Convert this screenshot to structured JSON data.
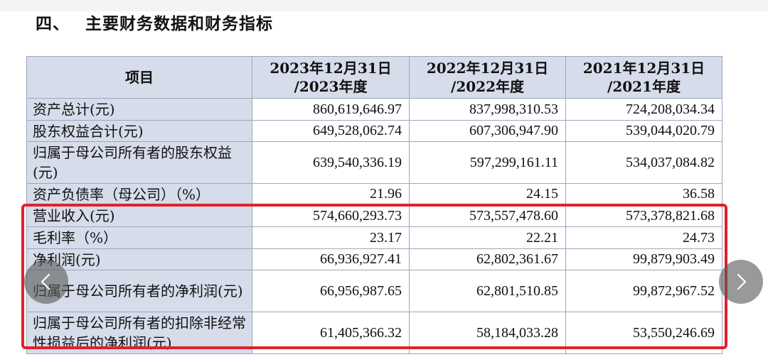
{
  "section": {
    "number": "四、",
    "title": "主要财务数据和财务指标"
  },
  "table": {
    "headers": [
      [
        "项目"
      ],
      [
        "2023年12月31日",
        "/2023年度"
      ],
      [
        "2022年12月31日",
        "/2022年度"
      ],
      [
        "2021年12月31日",
        "/2021年度"
      ]
    ],
    "rows": [
      {
        "label": "资产总计(元)",
        "values": [
          "860,619,646.97",
          "837,998,310.53",
          "724,208,034.34"
        ]
      },
      {
        "label": "股东权益合计(元)",
        "values": [
          "649,528,062.74",
          "607,306,947.90",
          "539,044,020.79"
        ]
      },
      {
        "label": "归属于母公司所有者的股东权益(元)",
        "values": [
          "639,540,336.19",
          "597,299,161.11",
          "534,037,084.82"
        ]
      },
      {
        "label": "资产负债率（母公司）（%）",
        "values": [
          "21.96",
          "24.15",
          "36.58"
        ]
      },
      {
        "label": "营业收入(元)",
        "values": [
          "574,660,293.73",
          "573,557,478.60",
          "573,378,821.68"
        ]
      },
      {
        "label": "毛利率（%）",
        "values": [
          "23.17",
          "22.21",
          "24.73"
        ]
      },
      {
        "label": "净利润(元)",
        "values": [
          "66,936,927.41",
          "62,802,361.67",
          "99,879,903.49"
        ]
      },
      {
        "label": "归属于母公司所有者的净利润(元)",
        "values": [
          "66,956,987.65",
          "62,801,510.85",
          "99,872,967.52"
        ]
      },
      {
        "label": "归属于母公司所有者的扣除非经常性损益后的净利润(元)",
        "values": [
          "61,405,366.32",
          "58,184,033.28",
          "53,550,246.69"
        ]
      }
    ]
  },
  "highlight_color": "#e0212b",
  "nav": {
    "prev_icon": "chevron-left-icon",
    "next_icon": "chevron-right-icon"
  }
}
